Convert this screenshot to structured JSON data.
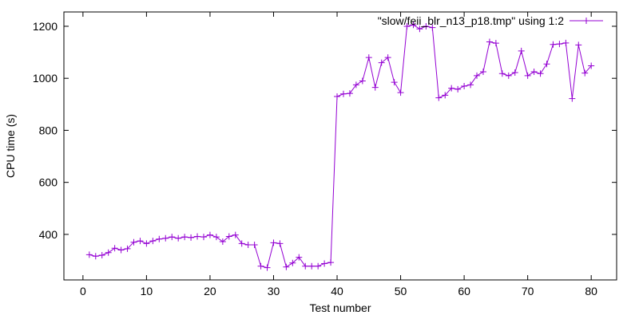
{
  "chart_data": {
    "type": "line",
    "title": "",
    "xlabel": "Test number",
    "ylabel": "CPU time (s)",
    "xlim": [
      -3,
      84
    ],
    "ylim": [
      225,
      1255
    ],
    "xticks": [
      0,
      10,
      20,
      30,
      40,
      50,
      60,
      70,
      80
    ],
    "yticks": [
      400,
      600,
      800,
      1000,
      1200
    ],
    "grid": false,
    "legend_position": "top-right",
    "series": [
      {
        "name": "\"slow/feii_blr_n13_p18.tmp\" using 1:2",
        "color": "#9400d3",
        "marker": "plus",
        "x": [
          1,
          2,
          3,
          4,
          5,
          6,
          7,
          8,
          9,
          10,
          11,
          12,
          13,
          14,
          15,
          16,
          17,
          18,
          19,
          20,
          21,
          22,
          23,
          24,
          25,
          26,
          27,
          28,
          29,
          30,
          31,
          32,
          33,
          34,
          35,
          36,
          37,
          38,
          39,
          40,
          41,
          42,
          43,
          44,
          45,
          46,
          47,
          48,
          49,
          50,
          51,
          52,
          53,
          54,
          55,
          56,
          57,
          58,
          59,
          60,
          61,
          62,
          63,
          64,
          65,
          66,
          67,
          68,
          69,
          70,
          71,
          72,
          73,
          74,
          75,
          76,
          77,
          78,
          79,
          80
        ],
        "y": [
          322,
          316,
          320,
          330,
          347,
          340,
          345,
          370,
          375,
          365,
          375,
          382,
          385,
          390,
          385,
          390,
          388,
          392,
          390,
          398,
          390,
          372,
          392,
          398,
          365,
          360,
          360,
          278,
          272,
          368,
          365,
          275,
          290,
          312,
          278,
          278,
          278,
          288,
          292,
          930,
          940,
          942,
          975,
          990,
          1080,
          965,
          1060,
          1080,
          985,
          945,
          1200,
          1205,
          1190,
          1200,
          1195,
          925,
          935,
          962,
          958,
          970,
          975,
          1010,
          1025,
          1140,
          1135,
          1018,
          1010,
          1022,
          1105,
          1010,
          1025,
          1018,
          1055,
          1130,
          1132,
          1136,
          922,
          1128,
          1020,
          1048
        ]
      }
    ]
  }
}
